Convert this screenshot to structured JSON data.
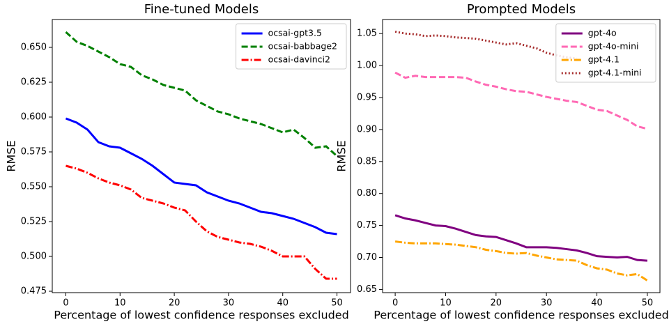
{
  "chart_data": [
    {
      "type": "line",
      "title": "Fine-tuned Models",
      "xlabel": "Percentage of lowest confidence responses excluded",
      "ylabel": "RMSE",
      "x": [
        0,
        2,
        4,
        6,
        8,
        10,
        12,
        14,
        16,
        18,
        20,
        22,
        24,
        26,
        28,
        30,
        32,
        34,
        36,
        38,
        40,
        42,
        44,
        46,
        48,
        50
      ],
      "xlim": [
        -2.5,
        52.5
      ],
      "xticks": [
        0,
        10,
        20,
        30,
        40,
        50
      ],
      "ylim": [
        0.474,
        0.67
      ],
      "yticks": [
        0.475,
        {
          "value": 0.5,
          "label": "0.500"
        },
        0.525,
        {
          "value": 0.55,
          "label": "0.550"
        },
        0.575,
        {
          "value": 0.6,
          "label": "0.600"
        },
        0.625,
        {
          "value": 0.65,
          "label": "0.650"
        }
      ],
      "legend": "upper right",
      "series": [
        {
          "name": "ocsai-gpt3.5",
          "color": "#0000ff",
          "style": "solid",
          "values": [
            0.599,
            0.596,
            0.591,
            0.582,
            0.579,
            0.578,
            0.574,
            0.57,
            0.565,
            0.559,
            0.553,
            0.552,
            0.551,
            0.546,
            0.543,
            0.54,
            0.538,
            0.535,
            0.532,
            0.531,
            0.529,
            0.527,
            0.524,
            0.521,
            0.517,
            0.516
          ]
        },
        {
          "name": "ocsai-babbage2",
          "color": "#008000",
          "style": "dashed",
          "values": [
            0.661,
            0.654,
            0.651,
            0.647,
            0.643,
            0.638,
            0.636,
            0.63,
            0.627,
            0.623,
            0.621,
            0.619,
            0.612,
            0.608,
            0.604,
            0.602,
            0.599,
            0.597,
            0.595,
            0.592,
            0.589,
            0.591,
            0.585,
            0.578,
            0.579,
            0.572
          ]
        },
        {
          "name": "ocsai-davinci2",
          "color": "#ff0000",
          "style": "dashdot",
          "values": [
            0.565,
            0.563,
            0.56,
            0.556,
            0.553,
            0.551,
            0.548,
            0.542,
            0.54,
            0.538,
            0.535,
            0.533,
            0.525,
            0.518,
            0.514,
            0.512,
            0.51,
            0.509,
            0.507,
            0.504,
            0.5,
            0.5,
            0.5,
            0.491,
            0.484,
            0.484
          ]
        }
      ]
    },
    {
      "type": "line",
      "title": "Prompted Models",
      "xlabel": "Percentage of lowest confidence responses excluded",
      "ylabel": "RMSE",
      "x": [
        0,
        2,
        4,
        6,
        8,
        10,
        12,
        14,
        16,
        18,
        20,
        22,
        24,
        26,
        28,
        30,
        32,
        34,
        36,
        38,
        40,
        42,
        44,
        46,
        48,
        50
      ],
      "xlim": [
        -2.5,
        52.5
      ],
      "xticks": [
        0,
        10,
        20,
        30,
        40,
        50
      ],
      "ylim": [
        0.645,
        1.072
      ],
      "yticks": [
        0.65,
        {
          "value": 0.7,
          "label": "0.70"
        },
        0.75,
        {
          "value": 0.8,
          "label": "0.80"
        },
        0.85,
        {
          "value": 0.9,
          "label": "0.90"
        },
        0.95,
        {
          "value": 1.0,
          "label": "1.00"
        },
        1.05
      ],
      "legend": "upper right",
      "series": [
        {
          "name": "gpt-4o",
          "color": "#800080",
          "style": "solid",
          "values": [
            0.766,
            0.761,
            0.758,
            0.754,
            0.75,
            0.749,
            0.745,
            0.74,
            0.735,
            0.733,
            0.732,
            0.727,
            0.722,
            0.716,
            0.716,
            0.716,
            0.715,
            0.713,
            0.711,
            0.707,
            0.702,
            0.701,
            0.7,
            0.701,
            0.696,
            0.695
          ]
        },
        {
          "name": "gpt-4o-mini",
          "color": "#ff69b4",
          "style": "dashed",
          "values": [
            0.989,
            0.981,
            0.984,
            0.982,
            0.982,
            0.982,
            0.982,
            0.981,
            0.975,
            0.97,
            0.967,
            0.963,
            0.96,
            0.959,
            0.955,
            0.951,
            0.948,
            0.945,
            0.943,
            0.937,
            0.931,
            0.929,
            0.922,
            0.915,
            0.905,
            0.901
          ]
        },
        {
          "name": "gpt-4.1",
          "color": "#ffa500",
          "style": "dashdot",
          "values": [
            0.725,
            0.723,
            0.722,
            0.722,
            0.722,
            0.721,
            0.72,
            0.718,
            0.716,
            0.712,
            0.71,
            0.707,
            0.706,
            0.707,
            0.703,
            0.7,
            0.697,
            0.696,
            0.695,
            0.688,
            0.683,
            0.681,
            0.675,
            0.672,
            0.674,
            0.664
          ]
        },
        {
          "name": "gpt-4.1-mini",
          "color": "#a52a2a",
          "style": "dotted",
          "values": [
            1.053,
            1.05,
            1.049,
            1.046,
            1.047,
            1.046,
            1.044,
            1.043,
            1.042,
            1.039,
            1.036,
            1.033,
            1.035,
            1.031,
            1.027,
            1.02,
            1.016,
            1.013,
            1.011,
            null,
            null,
            null,
            null,
            null,
            null,
            null
          ]
        }
      ]
    }
  ]
}
